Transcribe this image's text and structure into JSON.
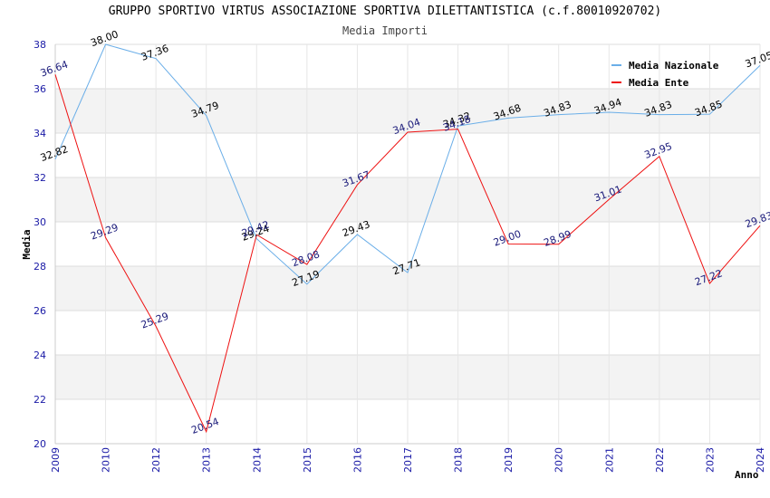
{
  "chart_data": {
    "type": "line",
    "title": "GRUPPO SPORTIVO VIRTUS ASSOCIAZIONE SPORTIVA DILETTANTISTICA (c.f.80010920702)",
    "subtitle": "Media Importi",
    "xlabel": "Anno",
    "ylabel": "Media",
    "categories": [
      "2009",
      "2010",
      "2012",
      "2013",
      "2014",
      "2015",
      "2016",
      "2017",
      "2018",
      "2019",
      "2020",
      "2021",
      "2022",
      "2023",
      "2024"
    ],
    "ylim": [
      20,
      38
    ],
    "yticks": [
      "20",
      "22",
      "24",
      "26",
      "28",
      "30",
      "32",
      "34",
      "36",
      "38"
    ],
    "grid": true,
    "legend_position": "top-right",
    "series": [
      {
        "name": "Media Nazionale",
        "color": "#6aaee8",
        "label_color": "#000000",
        "values": [
          32.82,
          38.0,
          37.36,
          34.79,
          29.24,
          27.19,
          29.43,
          27.71,
          34.32,
          34.68,
          34.83,
          34.94,
          34.83,
          34.85,
          37.05
        ],
        "labels": [
          "32.82",
          "38.00",
          "37.36",
          "34.79",
          "29.24",
          "27.19",
          "29.43",
          "27.71",
          "34.32",
          "34.68",
          "34.83",
          "34.94",
          "34.83",
          "34.85",
          "37.05"
        ]
      },
      {
        "name": "Media Ente",
        "color": "#ee1111",
        "label_color": "#1a1a7a",
        "values": [
          36.64,
          29.29,
          25.29,
          20.54,
          29.42,
          28.08,
          31.67,
          34.04,
          34.18,
          29.0,
          28.99,
          31.01,
          32.95,
          27.22,
          29.83
        ],
        "labels": [
          "36.64",
          "29.29",
          "25.29",
          "20.54",
          "29.42",
          "28.08",
          "31.67",
          "34.04",
          "34.18",
          "29.00",
          "28.99",
          "31.01",
          "32.95",
          "27.22",
          "29.83"
        ]
      }
    ]
  }
}
